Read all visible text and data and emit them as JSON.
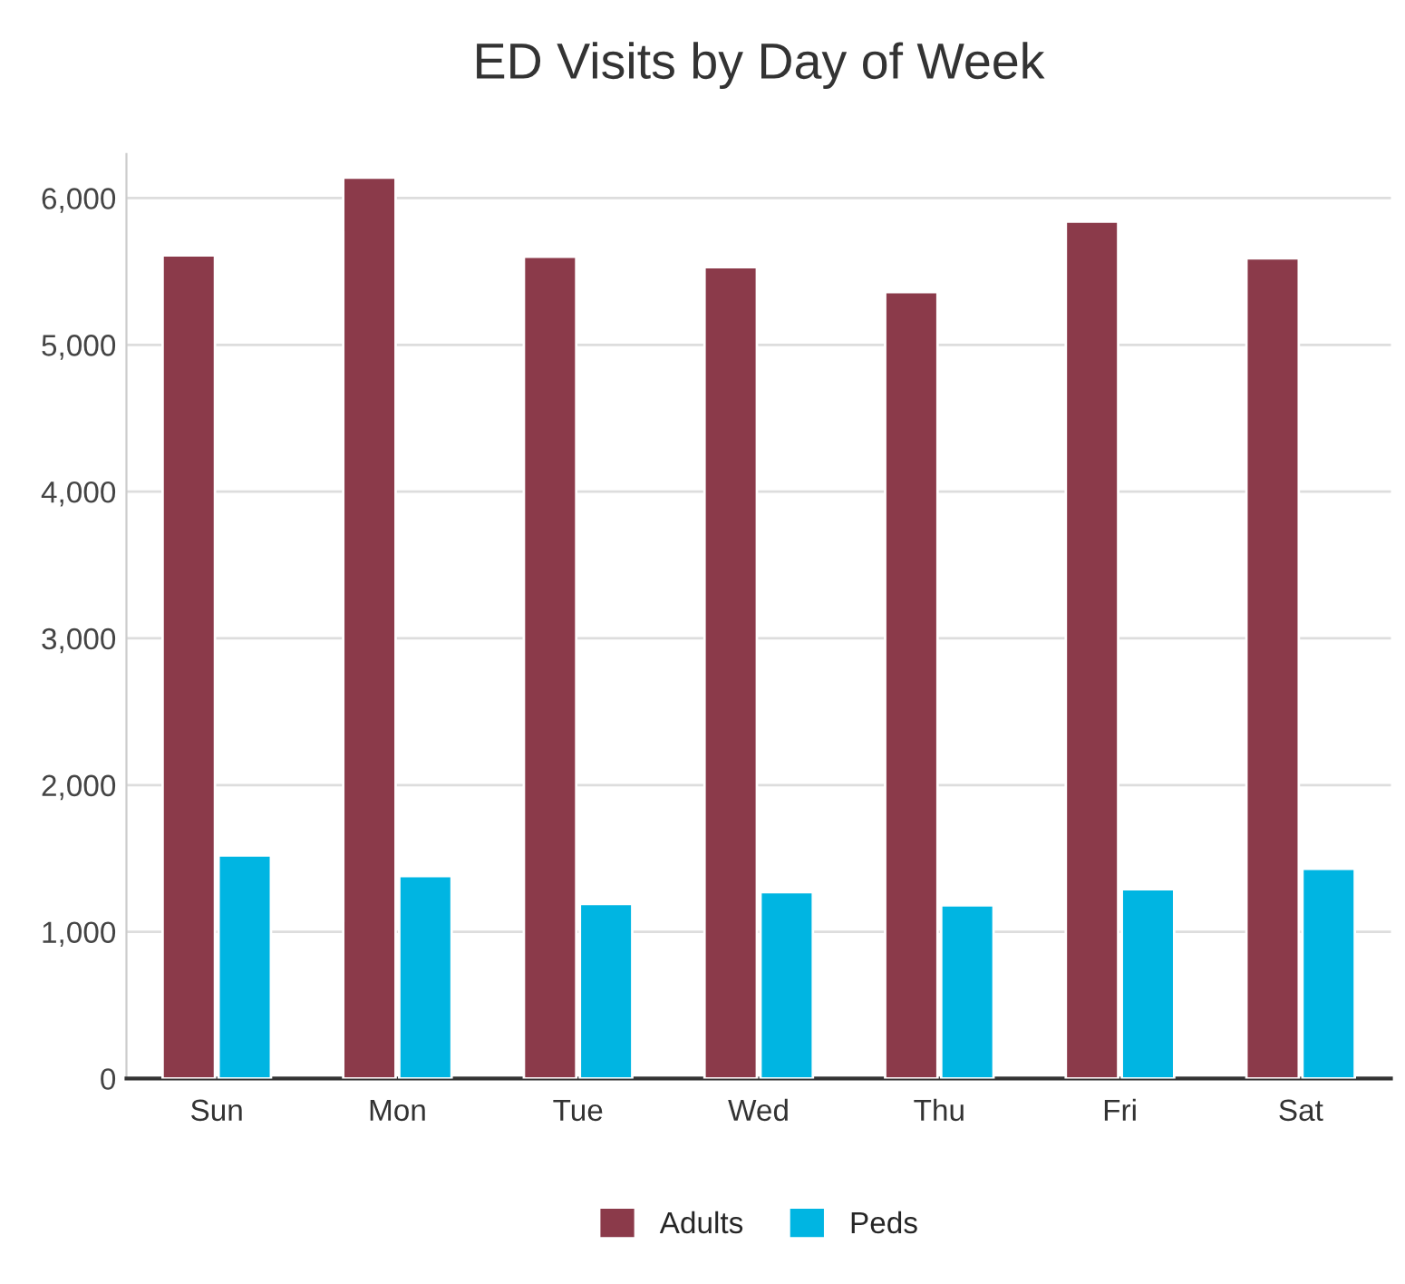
{
  "chart_data": {
    "type": "bar",
    "title": "ED Visits by Day of Week",
    "categories": [
      "Sun",
      "Mon",
      "Tue",
      "Wed",
      "Thu",
      "Fri",
      "Sat"
    ],
    "series": [
      {
        "name": "Adults",
        "color": "#8b3a4a",
        "values": [
          5610,
          6140,
          5600,
          5530,
          5360,
          5840,
          5590
        ]
      },
      {
        "name": "Peds",
        "color": "#00b5e2",
        "values": [
          1520,
          1380,
          1190,
          1270,
          1180,
          1290,
          1430
        ]
      }
    ],
    "ylim": [
      0,
      6300
    ],
    "yticks": [
      {
        "value": 0,
        "label": "0"
      },
      {
        "value": 1000,
        "label": "1,000"
      },
      {
        "value": 2000,
        "label": "2,000"
      },
      {
        "value": 3000,
        "label": "3,000"
      },
      {
        "value": 4000,
        "label": "4,000"
      },
      {
        "value": 5000,
        "label": "5,000"
      },
      {
        "value": 6000,
        "label": "6,000"
      }
    ],
    "grid": "y",
    "legend": "bottom"
  }
}
